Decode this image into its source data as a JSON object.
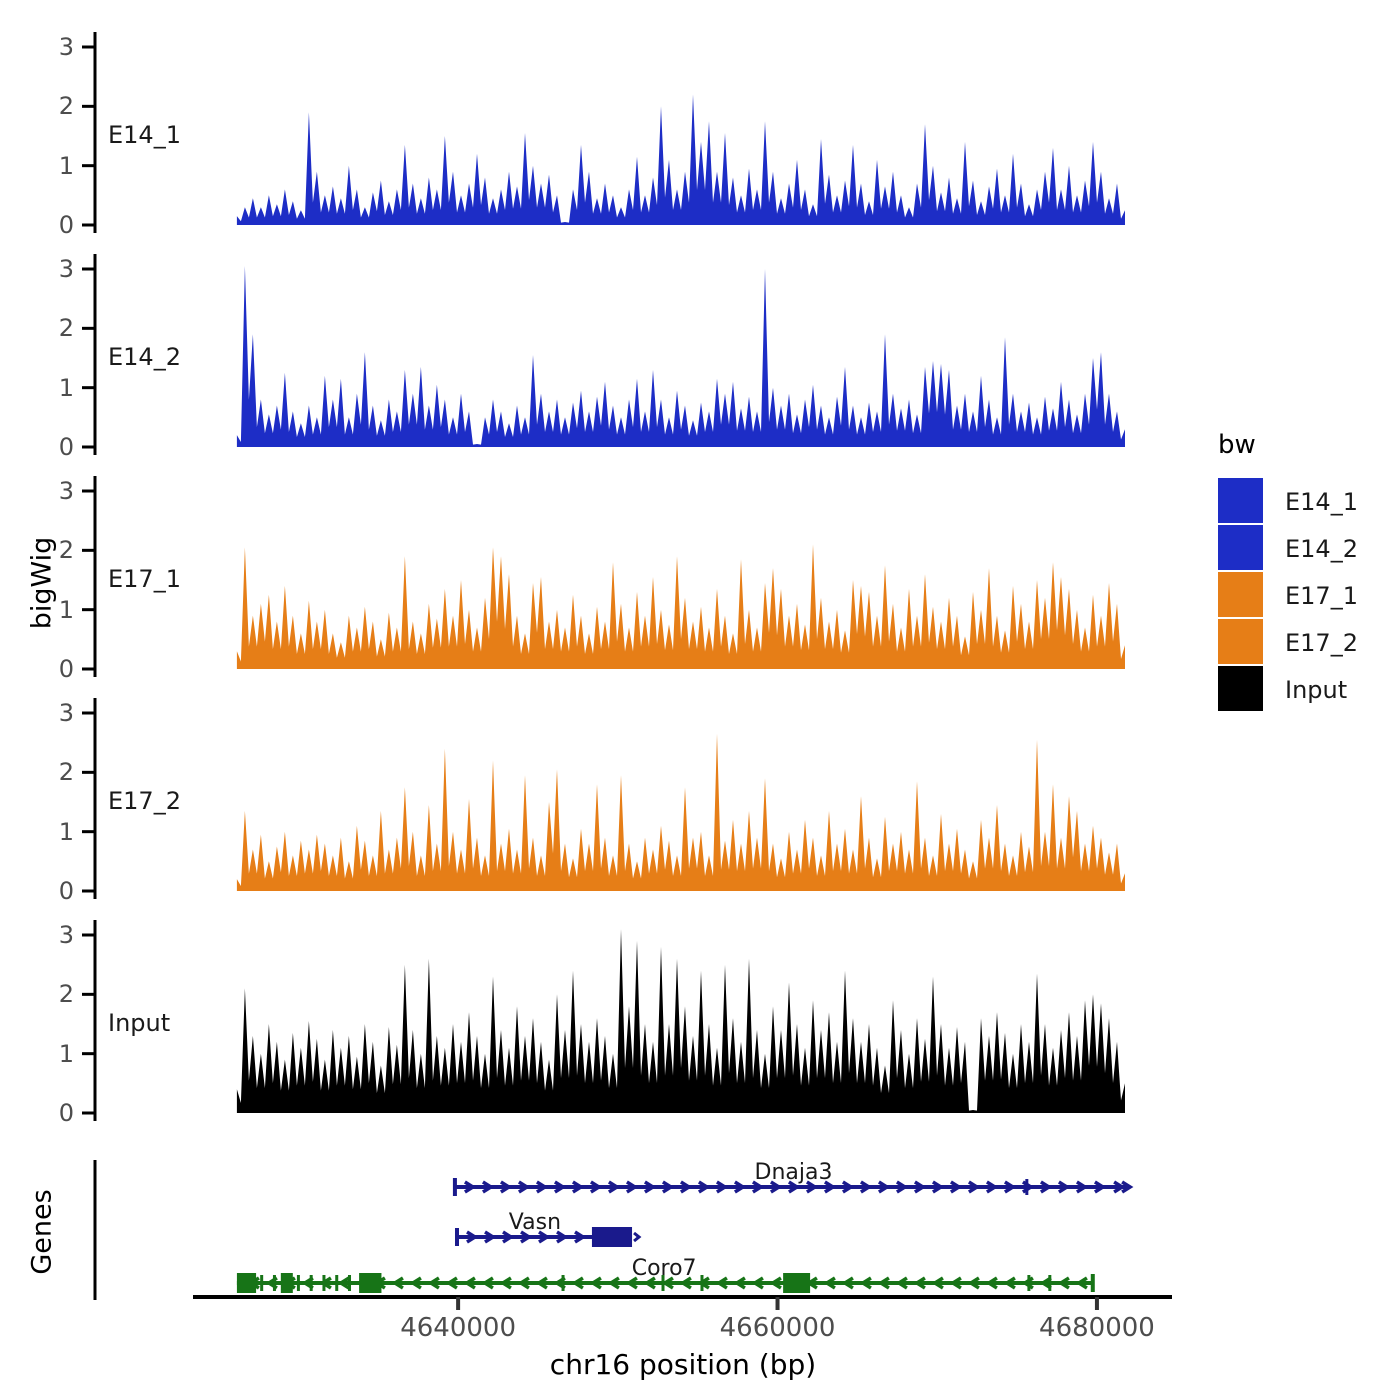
{
  "figure": {
    "ylab": "bigWig",
    "genes_lab": "Genes",
    "xlab": "chr16 position (bp)",
    "legend": {
      "title": "bw",
      "items": [
        {
          "label": "E14_1",
          "color": "#1d2dc6"
        },
        {
          "label": "E14_2",
          "color": "#1d2dc6"
        },
        {
          "label": "E17_1",
          "color": "#e67e17"
        },
        {
          "label": "E17_2",
          "color": "#e67e17"
        },
        {
          "label": "Input",
          "color": "#000000"
        }
      ]
    },
    "x_axis": {
      "domain_bp": [
        4623400,
        4684700
      ],
      "ticks": [
        4640000,
        4660000,
        4680000
      ],
      "tick_labels": [
        "4640000",
        "4660000",
        "4680000"
      ]
    },
    "y_axis": {
      "ticks": [
        0,
        1,
        2,
        3
      ],
      "tick_labels": [
        "0",
        "1",
        "2",
        "3"
      ]
    }
  },
  "chart_data": {
    "type": "area",
    "title": "",
    "xlabel": "chr16 position (bp)",
    "ylabel": "bigWig",
    "facet_titles": [
      "E14_1",
      "E14_2",
      "E17_1",
      "E17_2",
      "Input"
    ],
    "x_start_bp": 4626150,
    "x_end_bp": 4681760,
    "sample_step_bp": 501,
    "ylim": [
      0,
      3.1
    ],
    "legend_title": "bw",
    "series": [
      {
        "name": "E14_1",
        "color": "#1d2dc6",
        "values": [
          0.15,
          0.3,
          0.45,
          0.3,
          0.5,
          0.35,
          0.6,
          0.4,
          0.25,
          1.9,
          0.9,
          0.5,
          0.65,
          0.45,
          1.0,
          0.6,
          0.3,
          0.55,
          0.75,
          0.4,
          0.6,
          1.35,
          0.7,
          0.45,
          0.8,
          0.6,
          1.5,
          0.9,
          0.5,
          0.7,
          1.2,
          0.8,
          0.45,
          0.6,
          0.9,
          0.65,
          1.55,
          1.0,
          0.7,
          0.85,
          0.5,
          0.05,
          0.6,
          1.35,
          0.9,
          0.45,
          0.7,
          0.5,
          0.3,
          0.6,
          1.15,
          0.5,
          0.8,
          2.0,
          1.1,
          0.6,
          0.9,
          2.2,
          1.4,
          1.75,
          0.9,
          1.55,
          0.8,
          0.5,
          0.95,
          0.6,
          1.75,
          0.9,
          0.45,
          0.7,
          1.1,
          0.6,
          0.35,
          1.45,
          0.85,
          0.5,
          0.75,
          1.35,
          0.7,
          0.4,
          1.1,
          0.65,
          0.9,
          0.5,
          0.3,
          0.7,
          1.7,
          1.0,
          0.55,
          0.8,
          0.45,
          1.4,
          0.75,
          0.4,
          0.65,
          0.95,
          0.5,
          1.2,
          0.7,
          0.35,
          0.6,
          0.9,
          1.3,
          0.6,
          1.0,
          0.5,
          0.75,
          1.4,
          0.9,
          0.45,
          0.7,
          0.25
        ]
      },
      {
        "name": "E14_2",
        "color": "#1d2dc6",
        "values": [
          0.2,
          3.05,
          1.9,
          0.8,
          0.55,
          0.7,
          1.25,
          0.6,
          0.4,
          0.7,
          0.5,
          1.2,
          0.8,
          1.15,
          0.5,
          0.9,
          1.6,
          0.7,
          0.45,
          0.8,
          0.6,
          1.3,
          0.9,
          1.35,
          0.7,
          1.05,
          0.8,
          0.5,
          0.9,
          0.6,
          0.05,
          0.5,
          0.8,
          0.6,
          0.4,
          0.7,
          0.5,
          1.55,
          0.9,
          0.6,
          0.8,
          0.5,
          0.75,
          0.95,
          0.6,
          0.85,
          1.1,
          0.7,
          0.5,
          0.8,
          1.15,
          0.6,
          1.3,
          0.8,
          0.5,
          0.95,
          0.7,
          0.45,
          0.75,
          0.6,
          1.15,
          0.9,
          1.1,
          0.65,
          0.85,
          0.6,
          3.0,
          1.0,
          0.7,
          0.9,
          0.55,
          0.8,
          1.05,
          0.7,
          0.5,
          0.85,
          1.35,
          0.7,
          0.5,
          0.75,
          0.6,
          1.9,
          0.9,
          0.65,
          0.8,
          0.55,
          1.35,
          1.45,
          1.4,
          1.3,
          0.7,
          0.9,
          0.6,
          1.2,
          0.8,
          0.5,
          1.85,
          0.9,
          0.6,
          0.75,
          0.5,
          0.85,
          0.65,
          1.1,
          0.8,
          0.55,
          0.9,
          1.5,
          1.6,
          0.9,
          0.6,
          0.3
        ]
      },
      {
        "name": "E17_1",
        "color": "#e67e17",
        "values": [
          0.3,
          2.05,
          0.9,
          1.1,
          1.25,
          0.8,
          1.4,
          0.9,
          0.6,
          1.15,
          0.8,
          1.0,
          0.6,
          0.45,
          0.9,
          0.7,
          1.05,
          0.8,
          0.5,
          0.95,
          0.7,
          1.9,
          0.8,
          0.6,
          1.1,
          0.85,
          1.35,
          0.9,
          1.5,
          1.0,
          0.7,
          1.2,
          2.05,
          1.9,
          1.6,
          0.9,
          0.6,
          1.45,
          1.55,
          0.8,
          1.0,
          0.7,
          1.25,
          0.9,
          0.6,
          1.05,
          0.8,
          1.8,
          1.1,
          0.7,
          1.3,
          0.9,
          1.55,
          1.0,
          0.75,
          1.9,
          1.2,
          0.8,
          1.05,
          0.7,
          1.35,
          0.9,
          0.6,
          1.85,
          1.0,
          0.7,
          1.45,
          1.7,
          1.35,
          0.9,
          1.1,
          0.75,
          2.1,
          1.2,
          0.8,
          1.0,
          0.65,
          1.5,
          1.4,
          1.3,
          0.9,
          1.75,
          1.1,
          0.7,
          1.35,
          0.9,
          1.6,
          1.05,
          0.8,
          1.2,
          0.9,
          0.55,
          1.3,
          1.0,
          1.7,
          0.9,
          0.65,
          1.4,
          1.1,
          0.8,
          1.5,
          1.2,
          1.8,
          1.55,
          1.35,
          1.0,
          0.7,
          1.25,
          0.9,
          1.45,
          1.1,
          0.4
        ]
      },
      {
        "name": "E17_2",
        "color": "#e67e17",
        "values": [
          0.2,
          1.35,
          0.7,
          0.95,
          0.5,
          0.75,
          1.0,
          0.6,
          0.85,
          0.7,
          0.95,
          0.8,
          0.6,
          0.9,
          0.5,
          1.1,
          0.85,
          0.6,
          1.35,
          0.7,
          0.9,
          1.75,
          1.0,
          0.6,
          1.45,
          0.8,
          2.4,
          1.0,
          0.7,
          1.55,
          0.9,
          0.6,
          2.2,
          0.8,
          1.05,
          0.7,
          1.95,
          0.9,
          0.6,
          1.5,
          2.05,
          0.8,
          0.55,
          1.05,
          0.8,
          1.8,
          0.9,
          0.6,
          1.95,
          0.8,
          0.5,
          0.9,
          0.7,
          1.1,
          0.85,
          0.6,
          1.75,
          0.9,
          1.0,
          0.6,
          2.65,
          0.85,
          1.2,
          0.8,
          1.35,
          0.9,
          1.9,
          0.8,
          0.55,
          1.0,
          0.7,
          1.2,
          0.9,
          0.6,
          1.35,
          0.8,
          1.05,
          0.7,
          1.6,
          0.9,
          0.55,
          1.25,
          0.8,
          1.0,
          0.7,
          1.85,
          0.9,
          0.6,
          1.3,
          0.8,
          1.05,
          0.7,
          0.5,
          1.2,
          0.9,
          1.45,
          0.8,
          0.6,
          1.0,
          0.75,
          2.55,
          1.0,
          1.8,
          0.9,
          1.6,
          1.35,
          0.8,
          1.1,
          0.9,
          0.65,
          0.8,
          0.3
        ]
      },
      {
        "name": "Input",
        "color": "#000000",
        "values": [
          0.4,
          2.1,
          1.3,
          1.0,
          1.5,
          1.2,
          0.9,
          1.35,
          1.1,
          1.55,
          1.25,
          0.9,
          1.4,
          1.1,
          1.3,
          0.95,
          1.5,
          1.2,
          0.8,
          1.45,
          1.15,
          2.5,
          1.4,
          1.0,
          2.6,
          1.3,
          1.1,
          1.5,
          1.2,
          1.7,
          1.3,
          1.0,
          2.3,
          1.4,
          1.1,
          1.8,
          1.3,
          1.6,
          1.2,
          0.9,
          2.0,
          1.4,
          2.4,
          1.5,
          1.2,
          1.6,
          1.3,
          1.0,
          3.1,
          1.8,
          2.9,
          1.5,
          1.2,
          2.8,
          1.5,
          2.6,
          1.8,
          1.3,
          2.4,
          1.5,
          1.1,
          2.5,
          1.6,
          1.2,
          2.6,
          1.4,
          1.0,
          1.8,
          1.4,
          2.2,
          1.5,
          1.1,
          1.9,
          1.4,
          1.7,
          1.2,
          2.4,
          1.6,
          1.2,
          1.5,
          1.1,
          0.8,
          1.9,
          1.4,
          1.0,
          1.6,
          1.25,
          2.3,
          1.5,
          1.1,
          1.45,
          1.2,
          0.05,
          1.6,
          1.3,
          1.7,
          1.35,
          1.0,
          1.5,
          1.2,
          2.35,
          1.5,
          1.1,
          1.4,
          1.7,
          1.3,
          1.9,
          2.0,
          1.85,
          1.6,
          1.2,
          0.5
        ]
      }
    ],
    "genes": [
      {
        "name": "Dnaja3",
        "strand": "+",
        "color": "#1a1a8c",
        "row": 0,
        "start": 4639800,
        "end": 4681890,
        "start_bar": true,
        "end_style": "double-arrow",
        "ticks": [
          4675610
        ],
        "exons": [],
        "label_bp": 4661000
      },
      {
        "name": "Vasn",
        "strand": "+",
        "color": "#1a1a8c",
        "row": 1,
        "start": 4639930,
        "end": 4650890,
        "start_bar": true,
        "end_style": "small-arrow",
        "ticks": [],
        "exons": [
          [
            4648380,
            4650890
          ]
        ],
        "label_bp": 4644810
      },
      {
        "name": "Coro7",
        "strand": "-",
        "color": "#177417",
        "row": 2,
        "start": 4626150,
        "end": 4679740,
        "start_bar": false,
        "end_style": "bar",
        "ticks": [
          4627700,
          4628500,
          4630000,
          4630800,
          4631600,
          4632400,
          4633200,
          4646570,
          4652830,
          4655270,
          4675740,
          4677050
        ],
        "exons": [
          [
            4626150,
            4627350
          ],
          [
            4628900,
            4629650
          ],
          [
            4633800,
            4635200
          ],
          [
            4660350,
            4662040
          ]
        ],
        "label_bp": 4652900
      }
    ]
  }
}
